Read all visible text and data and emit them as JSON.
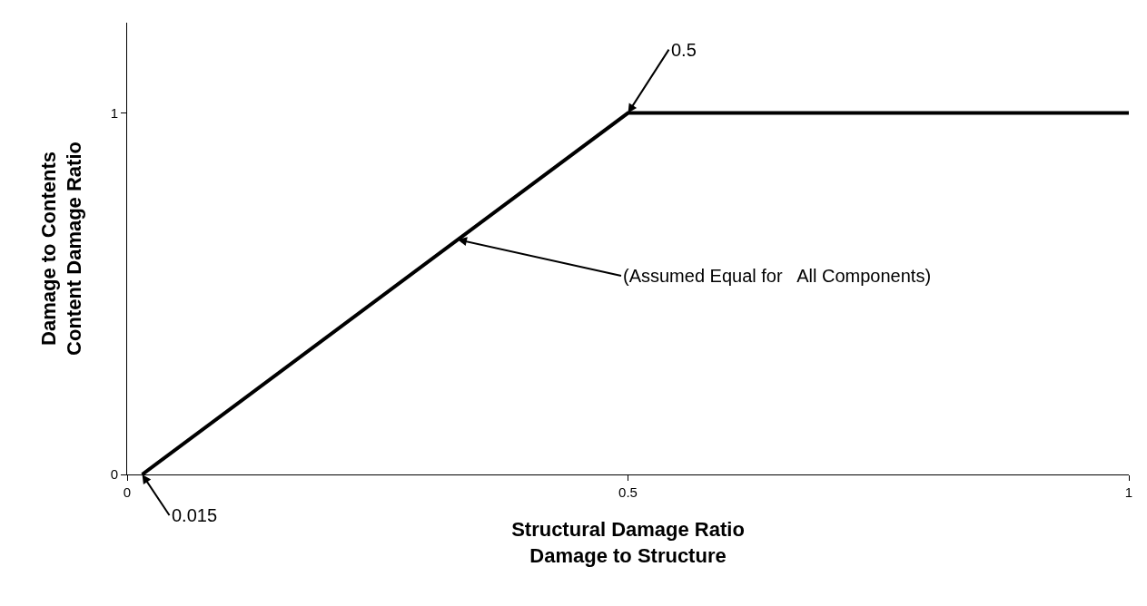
{
  "chart_data": {
    "type": "line",
    "xlabel": "Structural Damage Ratio\nDamage to Structure",
    "ylabel": "Damage to Contents\nContent Damage Ratio",
    "x": [
      0.015,
      0.5,
      1
    ],
    "series": [
      {
        "color": "#000000",
        "values": [
          0,
          1,
          1
        ]
      }
    ],
    "xlim": [
      0,
      1
    ],
    "xticks": [
      0,
      0.5,
      1
    ],
    "ylim": [
      0,
      1.25
    ],
    "yticks": [
      0,
      1
    ],
    "grid": false,
    "marker": "none",
    "line_style": "solid",
    "annotations": [
      {
        "text": "0.5",
        "x": 0.5,
        "y": 1
      },
      {
        "text": "0.015",
        "x": 0.015,
        "y": 0
      },
      {
        "text": "(Assumed Equal for   All Components)",
        "x": 0.33,
        "y": 0.65
      }
    ]
  }
}
